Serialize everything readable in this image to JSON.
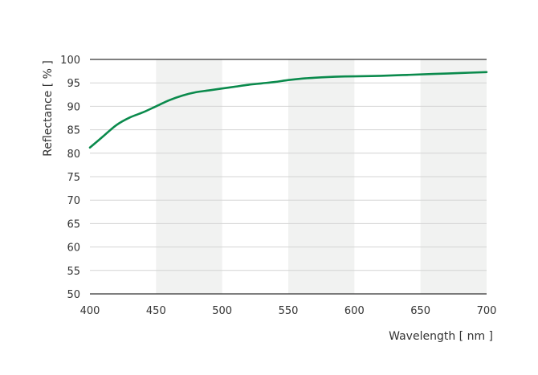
{
  "chart_data": {
    "type": "line",
    "title": "",
    "xlabel": "Wavelength [ nm ]",
    "ylabel": "Reflectance [ % ]",
    "xlim": [
      400,
      700
    ],
    "ylim": [
      50,
      100
    ],
    "x_ticks": [
      "400",
      "450",
      "500",
      "550",
      "600",
      "650",
      "700"
    ],
    "y_ticks": [
      "50",
      "55",
      "60",
      "65",
      "70",
      "75",
      "80",
      "85",
      "90",
      "95",
      "100"
    ],
    "grid": true,
    "shaded_bands": [
      [
        450,
        500
      ],
      [
        550,
        600
      ],
      [
        650,
        700
      ]
    ],
    "series": [
      {
        "color": "#0a8a4c",
        "x": [
          400,
          410,
          420,
          430,
          440,
          450,
          460,
          470,
          480,
          490,
          500,
          510,
          520,
          530,
          540,
          550,
          560,
          570,
          580,
          590,
          600,
          620,
          640,
          660,
          680,
          700
        ],
        "y": [
          81.2,
          83.6,
          86.0,
          87.6,
          88.7,
          90.0,
          91.3,
          92.3,
          93.0,
          93.4,
          93.8,
          94.2,
          94.6,
          94.9,
          95.2,
          95.6,
          95.9,
          96.1,
          96.25,
          96.35,
          96.4,
          96.5,
          96.7,
          96.9,
          97.1,
          97.3
        ]
      }
    ]
  }
}
